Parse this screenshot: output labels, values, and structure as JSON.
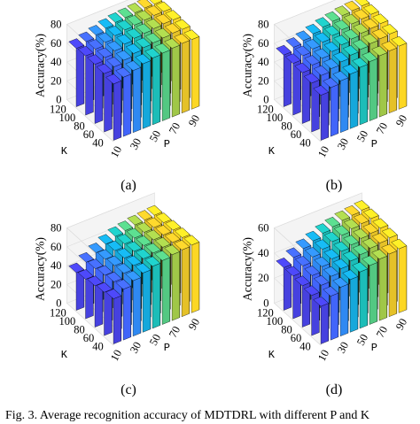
{
  "chart_data": [
    {
      "type": "bar3d",
      "panel_label": "(a)",
      "xlabel": "K",
      "ylabel": "P",
      "zlabel": "Accuracy(%)",
      "x": [
        40,
        60,
        80,
        100,
        120
      ],
      "x_tick_labels": [
        "40",
        "60",
        "80",
        "100",
        "120"
      ],
      "y": [
        10,
        20,
        30,
        40,
        50,
        60,
        70,
        80,
        90
      ],
      "y_tick_labels": [
        "10",
        "30",
        "50",
        "70",
        "90"
      ],
      "zlim": [
        0,
        80
      ],
      "z_ticks": [
        0,
        20,
        40,
        60,
        80
      ],
      "values": [
        [
          60,
          63,
          66,
          69,
          71,
          72,
          73,
          74,
          74
        ],
        [
          62,
          65,
          68,
          71,
          73,
          74,
          75,
          76,
          76
        ],
        [
          63,
          66,
          69,
          72,
          74,
          75,
          76,
          77,
          77
        ],
        [
          63,
          66,
          69,
          72,
          74,
          75,
          76,
          77,
          77
        ],
        [
          62,
          65,
          68,
          71,
          73,
          74,
          75,
          76,
          76
        ]
      ]
    },
    {
      "type": "bar3d",
      "panel_label": "(b)",
      "xlabel": "K",
      "ylabel": "P",
      "zlabel": "Accuracy(%)",
      "x": [
        40,
        60,
        80,
        100,
        120
      ],
      "x_tick_labels": [
        "40",
        "60",
        "80",
        "100",
        "120"
      ],
      "y": [
        10,
        20,
        30,
        40,
        50,
        60,
        70,
        80,
        90
      ],
      "y_tick_labels": [
        "10",
        "30",
        "50",
        "70",
        "90"
      ],
      "zlim": [
        0,
        80
      ],
      "z_ticks": [
        0,
        20,
        40,
        60,
        80
      ],
      "values": [
        [
          48,
          52,
          55,
          58,
          61,
          63,
          65,
          66,
          67
        ],
        [
          52,
          56,
          59,
          62,
          65,
          67,
          69,
          70,
          71
        ],
        [
          54,
          58,
          61,
          64,
          67,
          69,
          71,
          72,
          73
        ],
        [
          55,
          59,
          62,
          65,
          68,
          70,
          72,
          73,
          74
        ],
        [
          55,
          59,
          62,
          65,
          68,
          70,
          72,
          73,
          74
        ]
      ]
    },
    {
      "type": "bar3d",
      "panel_label": "(c)",
      "xlabel": "K",
      "ylabel": "P",
      "zlabel": "Accuracy(%)",
      "x": [
        40,
        60,
        80,
        100,
        120
      ],
      "x_tick_labels": [
        "40",
        "60",
        "80",
        "100",
        "120"
      ],
      "y": [
        10,
        20,
        30,
        40,
        50,
        60,
        70,
        80,
        90
      ],
      "y_tick_labels": [
        "10",
        "30",
        "50",
        "70",
        "90"
      ],
      "zlim": [
        0,
        80
      ],
      "z_ticks": [
        0,
        20,
        40,
        60,
        80
      ],
      "values": [
        [
          48,
          54,
          59,
          63,
          66,
          68,
          70,
          71,
          72
        ],
        [
          46,
          53,
          58,
          62,
          65,
          67,
          69,
          70,
          71
        ],
        [
          44,
          51,
          57,
          61,
          64,
          66,
          68,
          69,
          70
        ],
        [
          42,
          49,
          55,
          60,
          63,
          65,
          67,
          68,
          69
        ],
        [
          40,
          47,
          53,
          58,
          62,
          64,
          66,
          67,
          68
        ]
      ]
    },
    {
      "type": "bar3d",
      "panel_label": "(d)",
      "xlabel": "K",
      "ylabel": "P",
      "zlabel": "Accuracy(%)",
      "x": [
        40,
        60,
        80,
        100,
        120
      ],
      "x_tick_labels": [
        "40",
        "60",
        "80",
        "100",
        "120"
      ],
      "y": [
        10,
        20,
        30,
        40,
        50,
        60,
        70,
        80,
        90
      ],
      "y_tick_labels": [
        "10",
        "30",
        "50",
        "70",
        "90"
      ],
      "zlim": [
        0,
        60
      ],
      "z_ticks": [
        0,
        20,
        40,
        60
      ],
      "values": [
        [
          30,
          35,
          39,
          42,
          45,
          47,
          49,
          50,
          51
        ],
        [
          32,
          37,
          41,
          44,
          47,
          49,
          51,
          52,
          53
        ],
        [
          33,
          38,
          42,
          45,
          48,
          50,
          52,
          53,
          54
        ],
        [
          34,
          39,
          43,
          46,
          49,
          51,
          53,
          54,
          55
        ],
        [
          34,
          39,
          43,
          46,
          49,
          51,
          53,
          54,
          55
        ]
      ]
    }
  ],
  "caption": "Fig. 3.   Average recognition accuracy of MDTDRL with different P and K"
}
